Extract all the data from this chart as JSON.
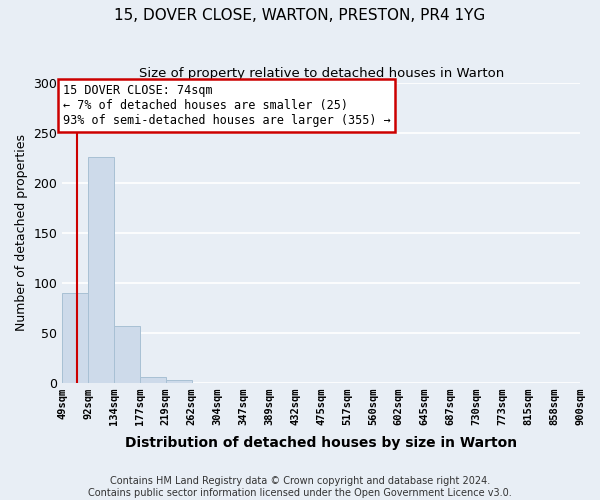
{
  "title": "15, DOVER CLOSE, WARTON, PRESTON, PR4 1YG",
  "subtitle": "Size of property relative to detached houses in Warton",
  "xlabel": "Distribution of detached houses by size in Warton",
  "ylabel": "Number of detached properties",
  "bar_values": [
    90,
    226,
    57,
    6,
    3,
    0,
    0,
    0,
    0,
    0,
    0,
    0,
    0,
    0,
    0,
    0,
    0,
    0,
    0,
    0
  ],
  "bar_labels": [
    "49sqm",
    "92sqm",
    "134sqm",
    "177sqm",
    "219sqm",
    "262sqm",
    "304sqm",
    "347sqm",
    "389sqm",
    "432sqm",
    "475sqm",
    "517sqm",
    "560sqm",
    "602sqm",
    "645sqm",
    "687sqm",
    "730sqm",
    "773sqm",
    "815sqm",
    "858sqm",
    "900sqm"
  ],
  "bar_color": "#cddaea",
  "bar_edge_color": "#a8c0d4",
  "marker_line_color": "#cc0000",
  "ylim": [
    0,
    300
  ],
  "yticks": [
    0,
    50,
    100,
    150,
    200,
    250,
    300
  ],
  "annotation_title": "15 DOVER CLOSE: 74sqm",
  "annotation_line1": "← 7% of detached houses are smaller (25)",
  "annotation_line2": "93% of semi-detached houses are larger (355) →",
  "annotation_box_color": "#cc0000",
  "footer1": "Contains HM Land Registry data © Crown copyright and database right 2024.",
  "footer2": "Contains public sector information licensed under the Open Government Licence v3.0.",
  "background_color": "#e8eef5",
  "grid_color": "#ffffff"
}
